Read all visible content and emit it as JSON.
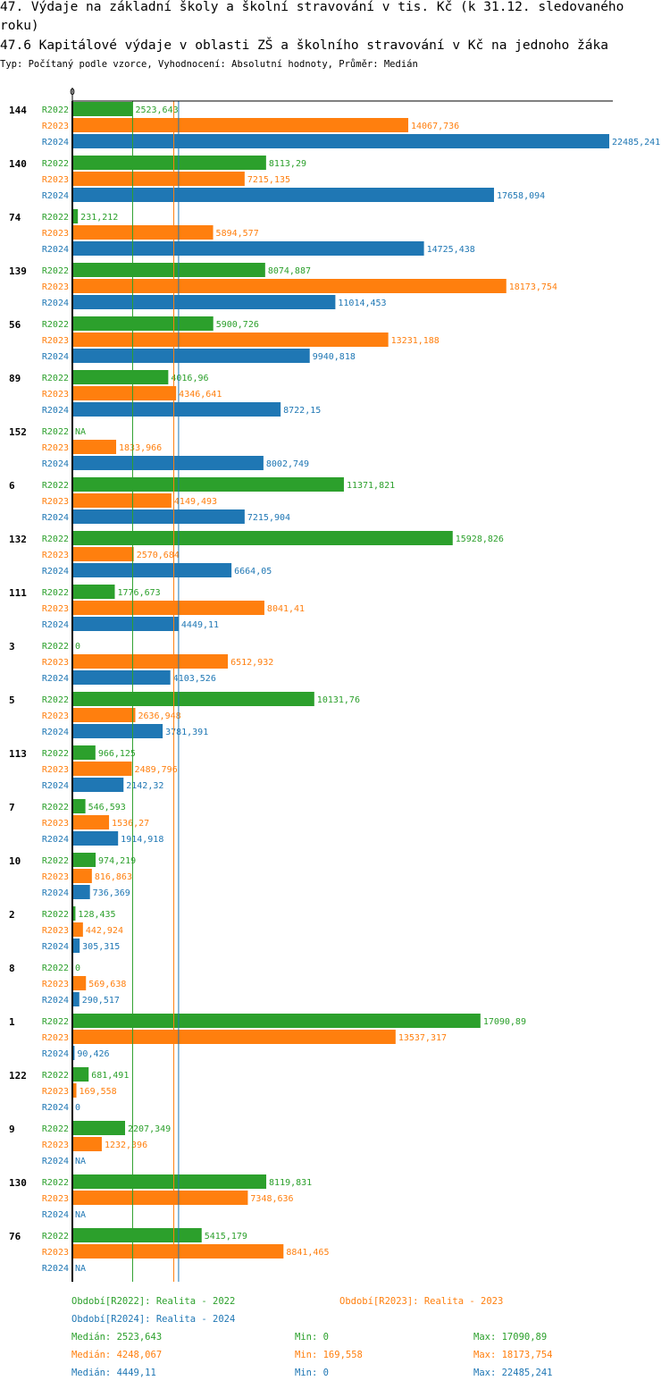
{
  "header": {
    "title_line1": "47. Výdaje na základní školy a školní stravování v tis. Kč (k 31.12. sledovaného",
    "title_line2": "roku)",
    "title_line3": "47.6 Kapitálové výdaje v oblasti ZŠ a školního stravování v Kč na jednoho žáka",
    "subtitle": "Typ: Počítaný podle vzorce, Vyhodnocení: Absolutní hodnoty, Průměr: Medián"
  },
  "colors": {
    "R2022": "#2ca02c",
    "R2023": "#ff7f0e",
    "R2024": "#1f77b4"
  },
  "chart_data": {
    "type": "bar",
    "orientation": "horizontal",
    "x_axis_zero_label": "0",
    "xlim": [
      0,
      22485.241
    ],
    "categories": [
      "144",
      "140",
      "74",
      "139",
      "56",
      "89",
      "152",
      "6",
      "132",
      "111",
      "3",
      "5",
      "113",
      "7",
      "10",
      "2",
      "8",
      "1",
      "122",
      "9",
      "130",
      "76"
    ],
    "series": [
      {
        "name": "R2022",
        "values": [
          2523.643,
          8113.29,
          231.212,
          8074.887,
          5900.726,
          4016.96,
          null,
          11371.821,
          15928.826,
          1776.673,
          0,
          10131.76,
          966.125,
          546.593,
          974.219,
          128.435,
          0,
          17090.89,
          681.491,
          2207.349,
          8119.831,
          5415.179
        ],
        "labels": [
          "2523,643",
          "8113,29",
          "231,212",
          "8074,887",
          "5900,726",
          "4016,96",
          "NA",
          "11371,821",
          "15928,826",
          "1776,673",
          "0",
          "10131,76",
          "966,125",
          "546,593",
          "974,219",
          "128,435",
          "0",
          "17090,89",
          "681,491",
          "2207,349",
          "8119,831",
          "5415,179"
        ]
      },
      {
        "name": "R2023",
        "values": [
          14067.736,
          7215.135,
          5894.577,
          18173.754,
          13231.188,
          4346.641,
          1833.966,
          4149.493,
          2570.684,
          8041.41,
          6512.932,
          2636.948,
          2489.796,
          1536.27,
          816.863,
          442.924,
          569.638,
          13537.317,
          169.558,
          1232.396,
          7348.636,
          8841.465
        ],
        "labels": [
          "14067,736",
          "7215,135",
          "5894,577",
          "18173,754",
          "13231,188",
          "4346,641",
          "1833,966",
          "4149,493",
          "2570,684",
          "8041,41",
          "6512,932",
          "2636,948",
          "2489,796",
          "1536,27",
          "816,863",
          "442,924",
          "569,638",
          "13537,317",
          "169,558",
          "1232,396",
          "7348,636",
          "8841,465"
        ]
      },
      {
        "name": "R2024",
        "values": [
          22485.241,
          17658.094,
          14725.438,
          11014.453,
          9940.818,
          8722.15,
          8002.749,
          7215.904,
          6664.05,
          4449.11,
          4103.526,
          3781.391,
          2142.32,
          1914.918,
          736.369,
          305.315,
          290.517,
          90.426,
          0,
          null,
          null,
          null
        ],
        "labels": [
          "22485,241",
          "17658,094",
          "14725,438",
          "11014,453",
          "9940,818",
          "8722,15",
          "8002,749",
          "7215,904",
          "6664,05",
          "4449,11",
          "4103,526",
          "3781,391",
          "2142,32",
          "1914,918",
          "736,369",
          "305,315",
          "290,517",
          "90,426",
          "0",
          "NA",
          "NA",
          "NA"
        ]
      }
    ],
    "medians": [
      2523.643,
      4248.067,
      4449.11
    ]
  },
  "legend": {
    "R2022": "Období[R2022]: Realita - 2022",
    "R2023": "Období[R2023]: Realita - 2023",
    "R2024": "Období[R2024]: Realita - 2024"
  },
  "stats": [
    {
      "median": "Medián: 2523,643",
      "min": "Min: 0",
      "max": "Max: 17090,89"
    },
    {
      "median": "Medián: 4248,067",
      "min": "Min: 169,558",
      "max": "Max: 18173,754"
    },
    {
      "median": "Medián: 4449,11",
      "min": "Min: 0",
      "max": "Max: 22485,241"
    }
  ]
}
